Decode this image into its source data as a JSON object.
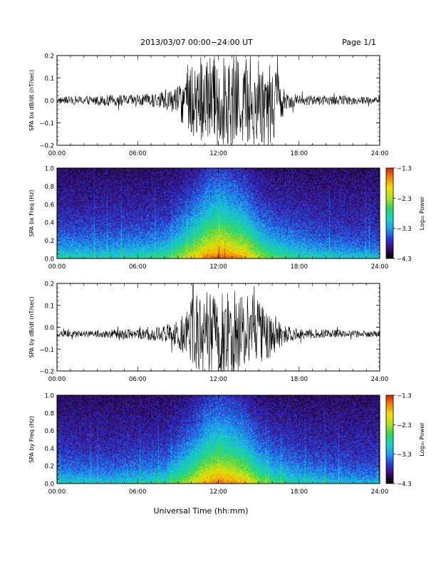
{
  "header": {
    "title": "2013/03/07  00:00−24:00 UT",
    "page": "Page 1/1"
  },
  "xlabel": "Universal Time (hh:mm)",
  "colorbar": {
    "label": "Log₁₀ Power",
    "ticks": [
      "−1.3",
      "−2.3",
      "−3.3",
      "−4.3"
    ],
    "range": [
      -4.3,
      -1.3
    ],
    "colors": [
      "#000000",
      "#3a0a6e",
      "#2a3ad8",
      "#1f9ef0",
      "#16d4c4",
      "#2fd45a",
      "#aee020",
      "#f4e100",
      "#f08a00",
      "#e21a00"
    ]
  },
  "chart_data": [
    {
      "type": "line",
      "ylabel": "SPA bx dB/dt (nT/sec)",
      "xlim": [
        "00:00",
        "24:00"
      ],
      "ylim": [
        -0.2,
        0.2
      ],
      "x_ticks": [
        "00:00",
        "06:00",
        "12:00",
        "18:00",
        "24:00"
      ],
      "y_ticks": [
        "0.2",
        "0.1",
        "0.0",
        "−0.1",
        "−0.2"
      ],
      "y_tick_values": [
        0.2,
        0.1,
        0.0,
        -0.1,
        -0.2
      ],
      "x_hours": [
        0,
        2,
        4,
        6,
        7,
        8,
        9,
        10,
        11,
        12,
        13,
        14,
        15,
        16,
        17,
        18,
        20,
        22,
        24
      ],
      "amplitude": [
        0.015,
        0.02,
        0.025,
        0.025,
        0.03,
        0.04,
        0.06,
        0.2,
        0.2,
        0.2,
        0.2,
        0.2,
        0.2,
        0.2,
        0.04,
        0.025,
        0.02,
        0.02,
        0.015
      ],
      "baseline": 0.0
    },
    {
      "type": "heatmap",
      "ylabel": "SPA bx Freq (Hz)",
      "xlim": [
        "00:00",
        "24:00"
      ],
      "ylim": [
        0.0,
        1.0
      ],
      "x_ticks": [
        "00:00",
        "06:00",
        "12:00",
        "18:00",
        "24:00"
      ],
      "y_ticks": [
        "1.0",
        "0.8",
        "0.6",
        "0.4",
        "0.2",
        "0.0"
      ],
      "y_tick_values": [
        1.0,
        0.8,
        0.6,
        0.4,
        0.2,
        0.0
      ],
      "x_hours": [
        0,
        4,
        8,
        10,
        11,
        12,
        13,
        14,
        15,
        16,
        18,
        20,
        24
      ],
      "peak_log_power": [
        -2.8,
        -2.9,
        -2.6,
        -2.0,
        -1.6,
        -1.4,
        -1.5,
        -1.7,
        -2.2,
        -2.5,
        -2.8,
        -2.9,
        -3.0
      ],
      "band_hz": [
        0.18,
        0.18,
        0.2,
        0.35,
        0.45,
        0.5,
        0.45,
        0.4,
        0.3,
        0.25,
        0.2,
        0.15,
        0.12
      ]
    },
    {
      "type": "line",
      "ylabel": "SPA by dB/dt (nT/sec)",
      "xlim": [
        "00:00",
        "24:00"
      ],
      "ylim": [
        -0.2,
        0.2
      ],
      "x_ticks": [
        "00:00",
        "06:00",
        "12:00",
        "18:00",
        "24:00"
      ],
      "y_ticks": [
        "0.2",
        "0.1",
        "0.0",
        "−0.1",
        "−0.2"
      ],
      "y_tick_values": [
        0.2,
        0.1,
        0.0,
        -0.1,
        -0.2
      ],
      "x_hours": [
        0,
        2,
        4,
        6,
        7,
        8,
        9,
        10,
        11,
        12,
        13,
        14,
        15,
        16,
        17,
        18,
        20,
        22,
        24
      ],
      "amplitude": [
        0.015,
        0.015,
        0.02,
        0.025,
        0.03,
        0.04,
        0.06,
        0.16,
        0.2,
        0.2,
        0.2,
        0.2,
        0.16,
        0.1,
        0.04,
        0.025,
        0.02,
        0.015,
        0.015
      ],
      "baseline": -0.03
    },
    {
      "type": "heatmap",
      "ylabel": "SPA by Freq (Hz)",
      "xlim": [
        "00:00",
        "24:00"
      ],
      "ylim": [
        0.0,
        1.0
      ],
      "x_ticks": [
        "00:00",
        "06:00",
        "12:00",
        "18:00",
        "24:00"
      ],
      "y_ticks": [
        "1.0",
        "0.8",
        "0.6",
        "0.4",
        "0.2",
        "0.0"
      ],
      "y_tick_values": [
        1.0,
        0.8,
        0.6,
        0.4,
        0.2,
        0.0
      ],
      "x_hours": [
        0,
        4,
        8,
        10,
        11,
        12,
        13,
        14,
        15,
        16,
        18,
        20,
        24
      ],
      "peak_log_power": [
        -2.9,
        -3.0,
        -2.7,
        -2.1,
        -1.7,
        -1.5,
        -1.6,
        -1.8,
        -2.3,
        -2.6,
        -2.9,
        -3.0,
        -3.1
      ],
      "band_hz": [
        0.15,
        0.15,
        0.18,
        0.35,
        0.45,
        0.5,
        0.45,
        0.4,
        0.3,
        0.25,
        0.2,
        0.15,
        0.12
      ]
    }
  ]
}
